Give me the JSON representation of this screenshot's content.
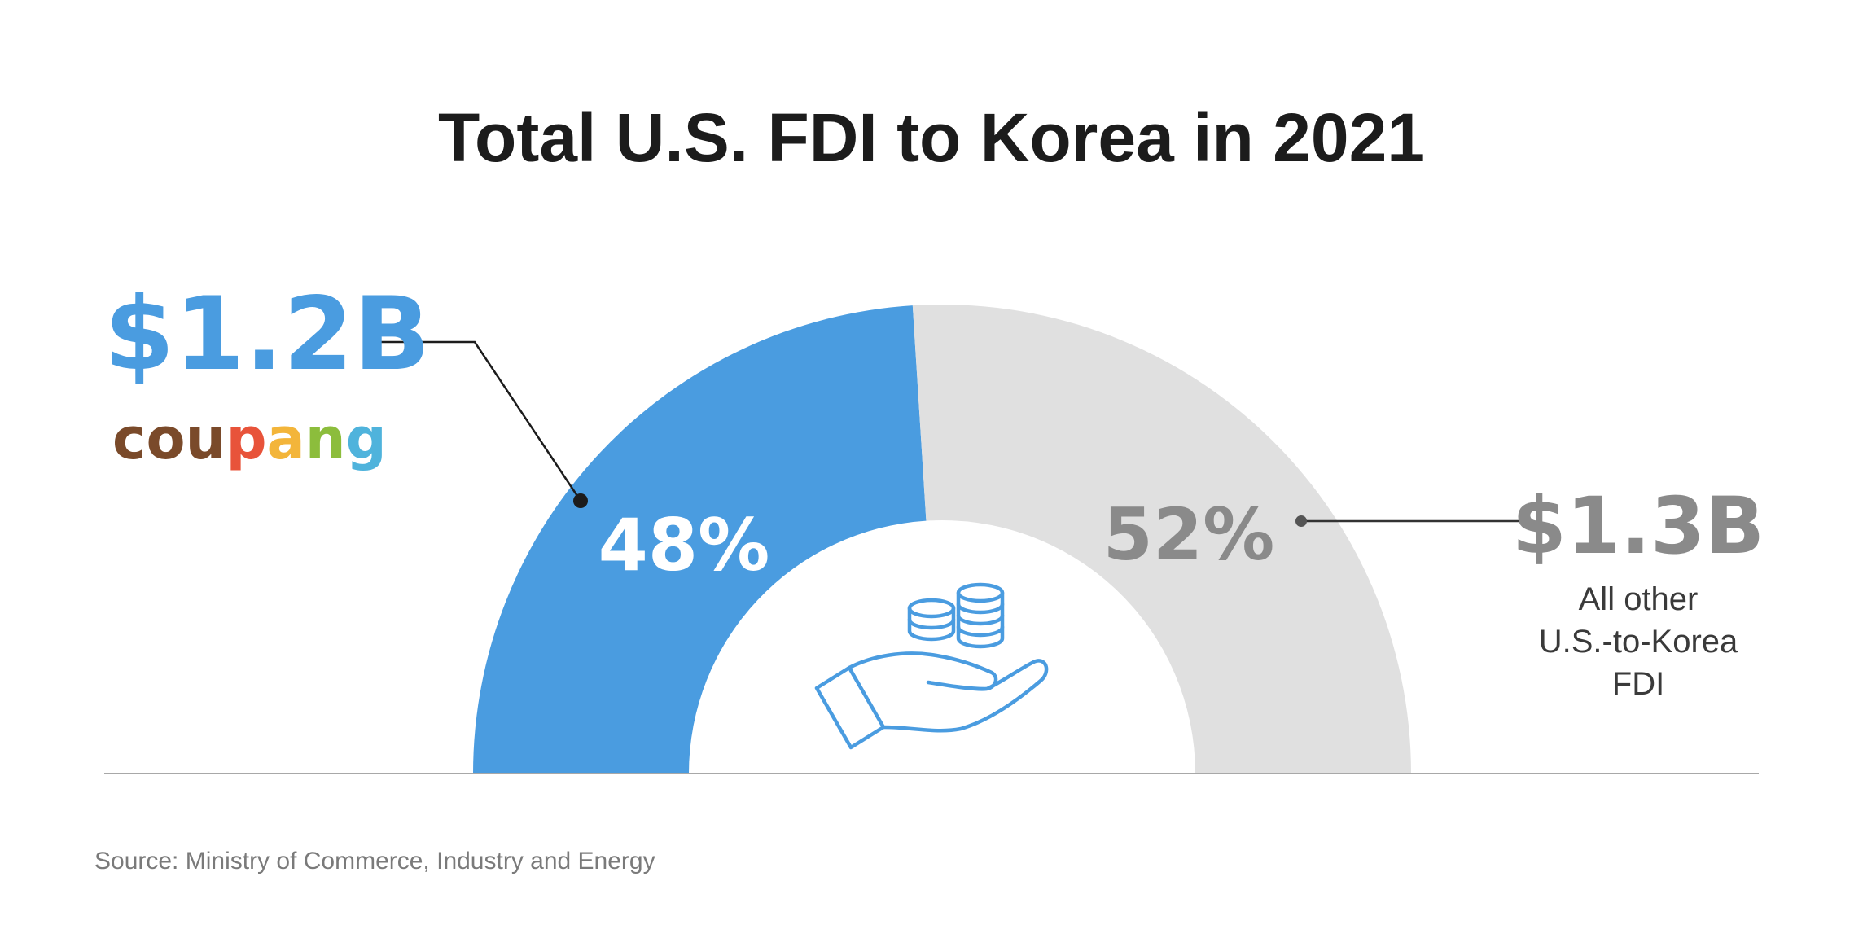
{
  "chart_data": {
    "type": "pie",
    "title": "Total U.S. FDI to Korea in 2021",
    "slices": [
      {
        "label": "coupang",
        "value": 48,
        "value_label": "48%",
        "amount": "$1.2B",
        "color": "#4a9ce0"
      },
      {
        "label": "All other U.S.-to-Korea FDI",
        "value": 52,
        "value_label": "52%",
        "amount": "$1.3B",
        "color": "#e0e0e0"
      }
    ],
    "source": "Source: Ministry of Commerce, Industry and Energy"
  },
  "logo": {
    "letters": [
      "c",
      "o",
      "u",
      "p",
      "a",
      "n",
      "g"
    ],
    "colors": [
      "#7a4a2a",
      "#7a4a2a",
      "#7a4a2a",
      "#e8533a",
      "#f3b53a",
      "#8cbd3c",
      "#4fb3dc"
    ]
  },
  "other_desc_lines": [
    "All other",
    "U.S.-to-Korea",
    "FDI"
  ],
  "icon": {
    "name": "hand-with-coins-icon",
    "color": "#4a9ce0"
  }
}
